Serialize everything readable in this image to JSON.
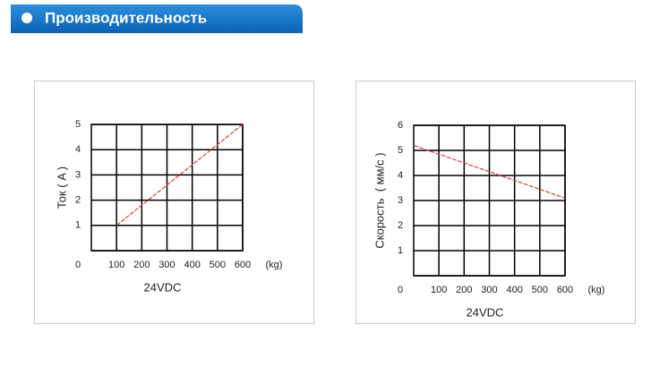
{
  "header": {
    "title": "Производительность"
  },
  "chart_data": [
    {
      "type": "line",
      "ylabel": "Ток ( A )",
      "xlabel": "24VDC",
      "x_unit_label": "(kg)",
      "x": [
        100,
        600
      ],
      "series": [
        {
          "color": "#d0463a",
          "values": [
            1,
            5
          ]
        }
      ],
      "xlim": [
        0,
        600
      ],
      "xticks": [
        100,
        200,
        300,
        400,
        500,
        600
      ],
      "ylim": [
        0,
        5
      ],
      "yticks": [
        0,
        1,
        2,
        3,
        4,
        5
      ],
      "grid": true
    },
    {
      "type": "line",
      "ylabel": "Скорость  ( мм/с )",
      "xlabel": "24VDC",
      "x_unit_label": "(kg)",
      "x": [
        0,
        600
      ],
      "series": [
        {
          "color": "#d0463a",
          "values": [
            5.2,
            3.1
          ]
        }
      ],
      "xlim": [
        0,
        600
      ],
      "xticks": [
        100,
        200,
        300,
        400,
        500,
        600
      ],
      "ylim": [
        0,
        6
      ],
      "yticks": [
        0,
        1,
        2,
        3,
        4,
        5,
        6
      ],
      "grid": true
    }
  ]
}
